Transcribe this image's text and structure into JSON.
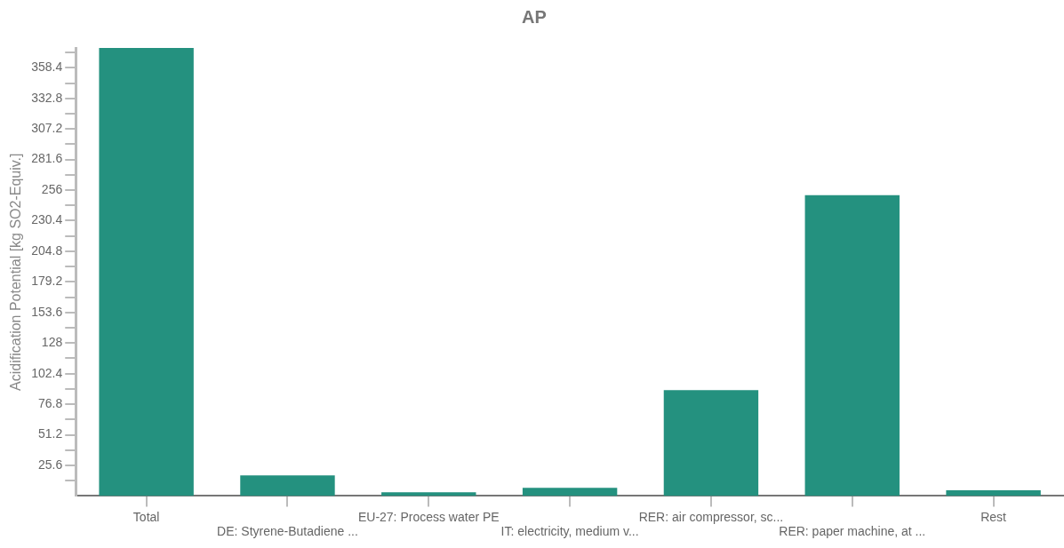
{
  "chart_data": {
    "type": "bar",
    "title": "AP",
    "ylabel": "Acidification Potential [kg SO2-Equiv.]",
    "categories": [
      "Total",
      "DE: Styrene-Butadiene ...",
      "EU-27: Process water PE",
      "IT: electricity, medium v...",
      "RER: air compressor, sc...",
      "RER: paper machine, at ...",
      "Rest"
    ],
    "values": [
      375,
      17.3,
      3.1,
      6.8,
      88.6,
      251.7,
      4.7
    ],
    "color": "#24917f",
    "ylim": [
      0,
      375
    ],
    "yticks": [
      {
        "value": 12.8,
        "label": null
      },
      25.6,
      {
        "value": 38.4,
        "label": null
      },
      51.2,
      {
        "value": 64,
        "label": null
      },
      76.8,
      {
        "value": 89.6,
        "label": null
      },
      102.4,
      {
        "value": 115.2,
        "label": null
      },
      128,
      {
        "value": 140.8,
        "label": null
      },
      153.6,
      {
        "value": 166.4,
        "label": null
      },
      179.2,
      {
        "value": 192,
        "label": null
      },
      204.8,
      {
        "value": 217.6,
        "label": null
      },
      230.4,
      {
        "value": 243.2,
        "label": null
      },
      256,
      {
        "value": 268.8,
        "label": null
      },
      281.6,
      {
        "value": 294.4,
        "label": null
      },
      307.2,
      {
        "value": 320,
        "label": null
      },
      332.8,
      {
        "value": 345.6,
        "label": null
      },
      358.4,
      {
        "value": 371.2,
        "label": null
      }
    ],
    "grid": false,
    "legend": false
  }
}
